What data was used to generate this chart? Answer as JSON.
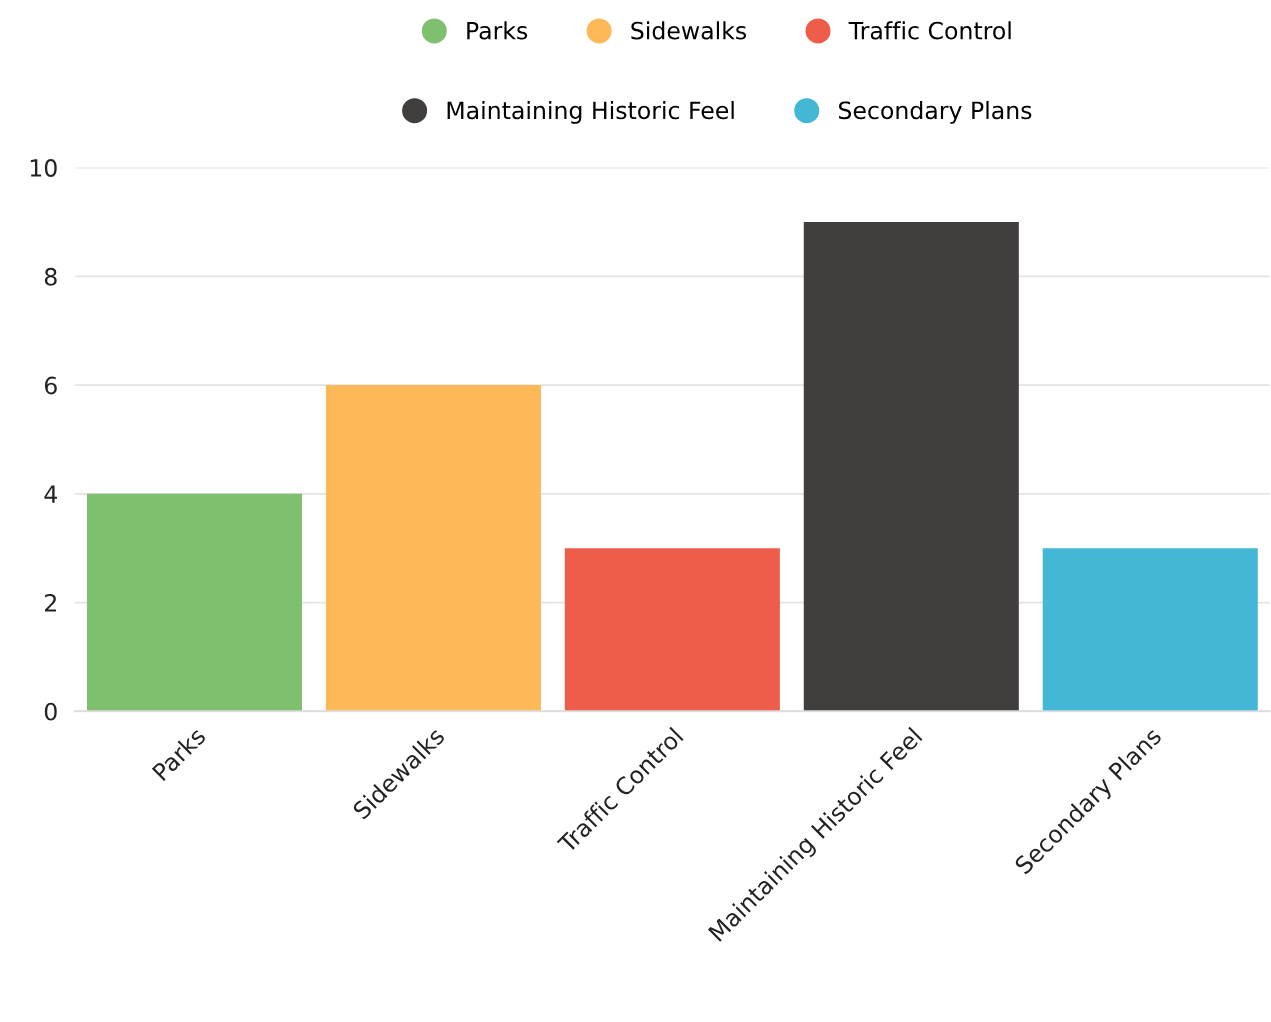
{
  "chart_data": {
    "type": "bar",
    "categories": [
      "Parks",
      "Sidewalks",
      "Traffic Control",
      "Maintaining Historic Feel",
      "Secondary Plans"
    ],
    "series": [
      {
        "name": "Parks",
        "color": "#7fc06e",
        "values": [
          4,
          null,
          null,
          null,
          null
        ]
      },
      {
        "name": "Sidewalks",
        "color": "#fdb858",
        "values": [
          null,
          6,
          null,
          null,
          null
        ]
      },
      {
        "name": "Traffic Control",
        "color": "#ee5d4a",
        "values": [
          null,
          null,
          3,
          null,
          null
        ]
      },
      {
        "name": "Maintaining Historic Feel",
        "color": "#403f3d",
        "values": [
          null,
          null,
          null,
          9,
          null
        ]
      },
      {
        "name": "Secondary Plans",
        "color": "#42b7d6",
        "values": [
          null,
          null,
          null,
          null,
          3
        ]
      }
    ],
    "ylim": [
      0,
      10
    ],
    "yticks": [
      0,
      2,
      4,
      6,
      8,
      10
    ],
    "grid": "y",
    "legend": "top"
  }
}
